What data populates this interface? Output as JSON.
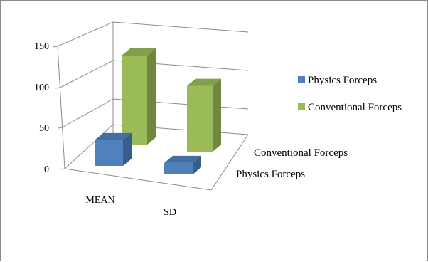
{
  "chart_data": {
    "type": "bar",
    "subtype": "3d-column",
    "categories": [
      "MEAN",
      "SD"
    ],
    "depth_categories": [
      "Physics Forceps",
      "Conventional Forceps"
    ],
    "series": [
      {
        "name": "Physics Forceps",
        "values": [
          38,
          17
        ],
        "color": "#4f81bd"
      },
      {
        "name": "Conventional Forceps",
        "values": [
          138,
          102
        ],
        "color": "#9bbb59"
      }
    ],
    "y_ticks": [
      "0",
      "50",
      "100",
      "150"
    ],
    "ylim": [
      0,
      150
    ],
    "grid": true,
    "legend_position": "right"
  }
}
